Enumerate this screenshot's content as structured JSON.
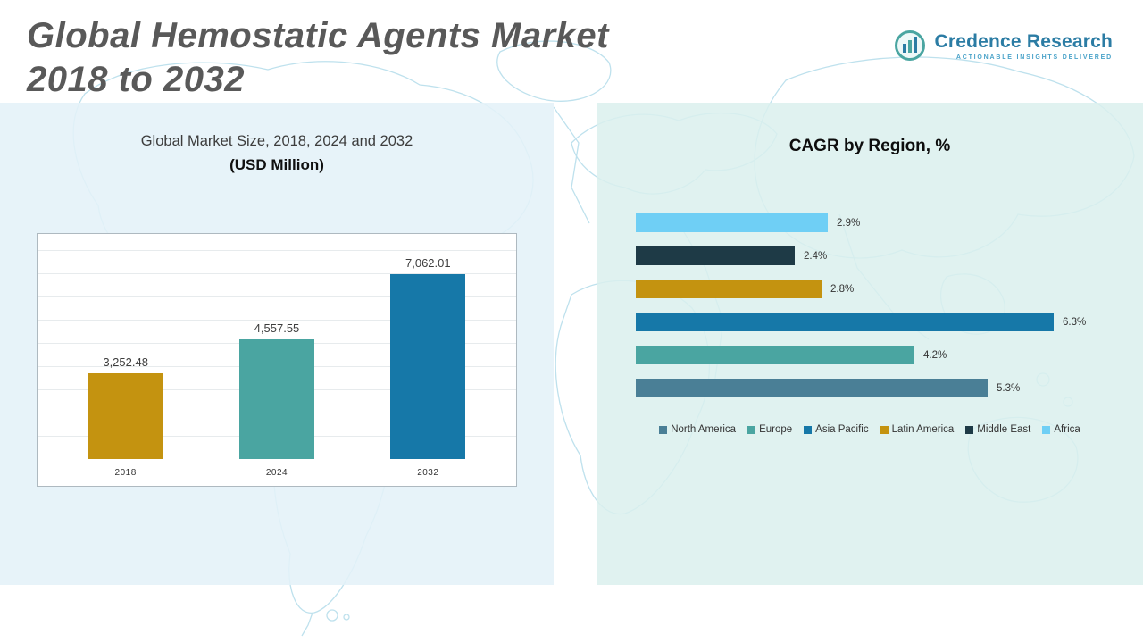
{
  "page": {
    "title_line1": "Global Hemostatic Agents Market",
    "title_line2": "2018 to 2032"
  },
  "logo": {
    "name": "Credence Research",
    "tagline": "Actionable Insights Delivered",
    "accent_blue": "#2b7ca4",
    "accent_teal": "#4AA5A1"
  },
  "chart_data": [
    {
      "type": "bar",
      "orientation": "vertical",
      "title": "Global Market Size, 2018, 2024 and 2032",
      "subtitle": "(USD Million)",
      "categories": [
        "2018",
        "2024",
        "2032"
      ],
      "values": [
        3252.48,
        4557.55,
        7062.01
      ],
      "value_labels": [
        "3,252.48",
        "4,557.55",
        "7,062.01"
      ],
      "colors": [
        "#C49310",
        "#4AA5A1",
        "#1678A8"
      ],
      "ylim": [
        0,
        8000
      ],
      "grid": true,
      "legend_position": "none"
    },
    {
      "type": "bar",
      "orientation": "horizontal",
      "title": "CAGR by Region, %",
      "rows": [
        {
          "region": "Africa",
          "value": 2.9,
          "label": "2.9%",
          "color": "#6FCFF5"
        },
        {
          "region": "Middle East",
          "value": 2.4,
          "label": "2.4%",
          "color": "#1E3A46"
        },
        {
          "region": "Latin America",
          "value": 2.8,
          "label": "2.8%",
          "color": "#C49310"
        },
        {
          "region": "Asia Pacific",
          "value": 6.3,
          "label": "6.3%",
          "color": "#1678A8"
        },
        {
          "region": "Europe",
          "value": 4.2,
          "label": "4.2%",
          "color": "#4AA5A1"
        },
        {
          "region": "North America",
          "value": 5.3,
          "label": "5.3%",
          "color": "#4A7F96"
        }
      ],
      "xlim": [
        0,
        7
      ],
      "grid": false,
      "legend_position": "bottom",
      "legend": [
        {
          "label": "North America",
          "color": "#4A7F96"
        },
        {
          "label": "Europe",
          "color": "#4AA5A1"
        },
        {
          "label": "Asia Pacific",
          "color": "#1678A8"
        },
        {
          "label": "Latin America",
          "color": "#C49310"
        },
        {
          "label": "Middle East",
          "color": "#1E3A46"
        },
        {
          "label": "Africa",
          "color": "#6FCFF5"
        }
      ]
    }
  ]
}
